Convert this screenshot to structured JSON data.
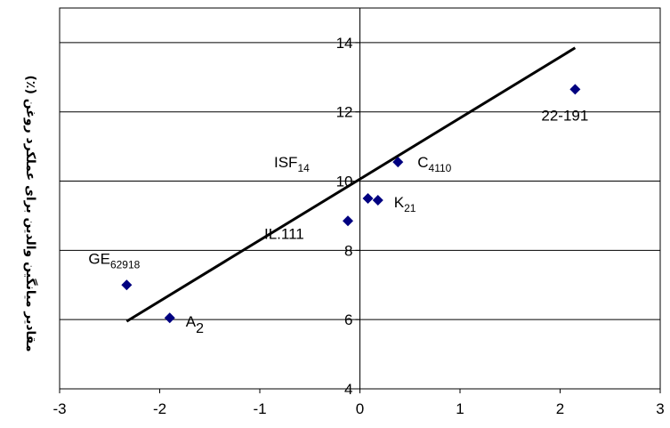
{
  "chart_data": {
    "type": "scatter",
    "title": "",
    "xlabel": "",
    "ylabel": "مقادیر میانگین والدین برای عملکرد روغن (٪)",
    "xlim": [
      -3,
      3
    ],
    "ylim": [
      4,
      15
    ],
    "x_ticks": [
      "-3",
      "-2",
      "-1",
      "0",
      "1",
      "2",
      "3"
    ],
    "y_ticks": [
      "4",
      "6",
      "8",
      "10",
      "12",
      "14"
    ],
    "grid": "horizontal",
    "marker_color": "#000080",
    "line_color": "#000000",
    "points": [
      {
        "x": -2.33,
        "y": 7.0,
        "label": "GE",
        "sub": "62918"
      },
      {
        "x": -1.9,
        "y": 6.05,
        "label": "A",
        "sub": "2"
      },
      {
        "x": -0.12,
        "y": 8.85,
        "label": "IL.111",
        "sub": ""
      },
      {
        "x": 0.08,
        "y": 9.5,
        "label": "",
        "sub": ""
      },
      {
        "x": 0.18,
        "y": 9.45,
        "label": "K",
        "sub": "21"
      },
      {
        "x": 0.38,
        "y": 10.55,
        "label": "C",
        "sub": "4110"
      },
      {
        "x": 2.15,
        "y": 12.65,
        "label": "22-191",
        "sub": ""
      }
    ],
    "free_labels": [
      {
        "label": "ISF",
        "sub": "14"
      }
    ],
    "regression": {
      "x": [
        -2.33,
        2.15
      ],
      "y": [
        5.95,
        13.85
      ]
    }
  }
}
